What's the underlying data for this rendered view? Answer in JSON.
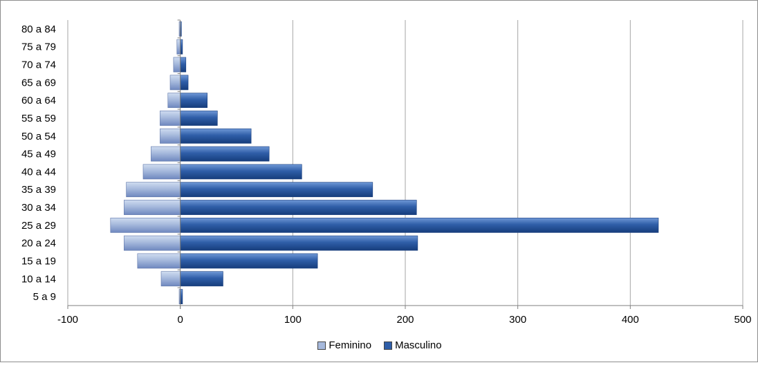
{
  "chart_data": {
    "type": "bar",
    "orientation": "horizontal",
    "stacked": true,
    "categories": [
      "5 a 9",
      "10 a 14",
      "15 a 19",
      "20 a 24",
      "25 a 29",
      "30 a 34",
      "35 a 39",
      "40 a 44",
      "45 a 49",
      "50 a 54",
      "55 a 59",
      "60 a 64",
      "65 a 69",
      "70 a 74",
      "75 a 79",
      "80 a 84"
    ],
    "series": [
      {
        "name": "Feminino",
        "color": "#a6b9dc",
        "values": [
          -1,
          -17,
          -38,
          -50,
          -62,
          -50,
          -48,
          -33,
          -26,
          -18,
          -18,
          -11,
          -9,
          -6,
          -3,
          -1
        ]
      },
      {
        "name": "Masculino",
        "color": "#2f5ea8",
        "values": [
          2,
          38,
          122,
          211,
          425,
          210,
          171,
          108,
          79,
          63,
          33,
          24,
          7,
          5,
          2,
          1
        ]
      }
    ],
    "xlim": [
      -100,
      500
    ],
    "xticks": [
      -100,
      0,
      100,
      200,
      300,
      400,
      500
    ],
    "grid": "vertical",
    "legend": "bottom",
    "title": "",
    "xlabel": "",
    "ylabel": ""
  }
}
